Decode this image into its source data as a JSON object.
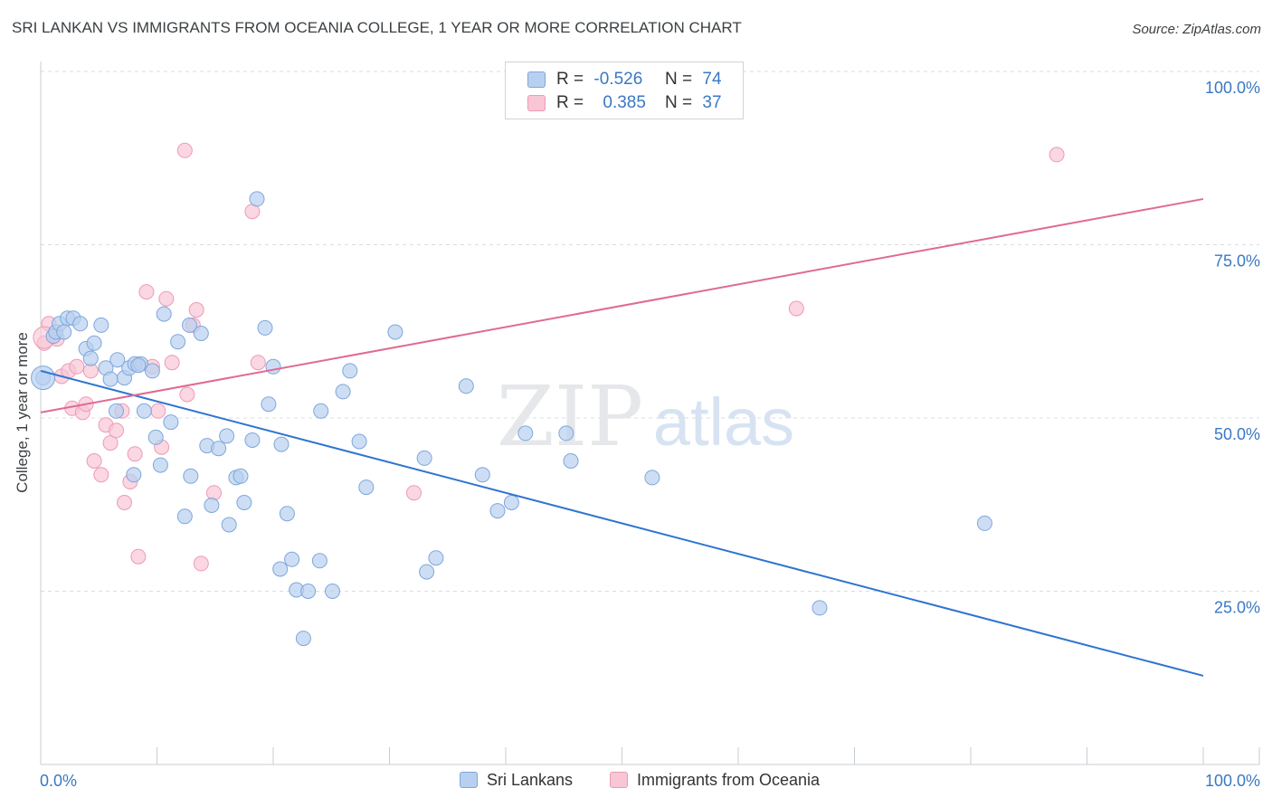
{
  "title": "SRI LANKAN VS IMMIGRANTS FROM OCEANIA COLLEGE, 1 YEAR OR MORE CORRELATION CHART",
  "source": "Source: ZipAtlas.com",
  "watermark": {
    "zip": "ZIP",
    "atlas": "atlas"
  },
  "colors": {
    "blue_fill": "#b8d0ef",
    "blue_stroke": "#7ea6dc",
    "blue_line": "#2f74d0",
    "pink_fill": "#f8c6d5",
    "pink_stroke": "#ee9ab4",
    "pink_line": "#e06a93",
    "grid": "#d9dde2",
    "axis_text_blue": "#3a78c4"
  },
  "legend": {
    "rows": [
      {
        "r_label": "R =",
        "r_value": "-0.526",
        "n_label": "N =",
        "n_value": "74"
      },
      {
        "r_label": "R =",
        "r_value": "0.385",
        "n_label": "N =",
        "n_value": "37"
      }
    ]
  },
  "bottom_legend": {
    "series1": "Sri Lankans",
    "series2": "Immigrants from Oceania"
  },
  "chart_data": {
    "type": "scatter",
    "xlabel": "",
    "ylabel": "College, 1 year or more",
    "xlim": [
      0,
      100
    ],
    "ylim": [
      0,
      100
    ],
    "x_tick_labels": [
      "0.0%",
      "100.0%"
    ],
    "y_tick_labels": [
      "25.0%",
      "50.0%",
      "75.0%",
      "100.0%"
    ],
    "y_ticks": [
      25,
      50,
      75,
      100
    ],
    "series": [
      {
        "name": "Sri Lankans",
        "color": "blue",
        "trend": {
          "x": [
            0,
            100
          ],
          "y": [
            56.8,
            12.8
          ]
        },
        "points": [
          [
            0.2,
            55.8
          ],
          [
            1.1,
            61.8
          ],
          [
            1.3,
            62.4
          ],
          [
            1.6,
            63.6
          ],
          [
            2.0,
            62.4
          ],
          [
            2.3,
            64.4
          ],
          [
            2.8,
            64.4
          ],
          [
            3.4,
            63.6
          ],
          [
            3.9,
            60.0
          ],
          [
            4.3,
            58.6
          ],
          [
            4.6,
            60.8
          ],
          [
            5.2,
            63.4
          ],
          [
            5.6,
            57.2
          ],
          [
            6.0,
            55.6
          ],
          [
            6.5,
            51.0
          ],
          [
            6.6,
            58.4
          ],
          [
            7.2,
            55.8
          ],
          [
            7.6,
            57.2
          ],
          [
            8.1,
            57.8
          ],
          [
            8.6,
            57.8
          ],
          [
            8.9,
            51.0
          ],
          [
            9.6,
            56.8
          ],
          [
            9.9,
            47.2
          ],
          [
            10.3,
            43.2
          ],
          [
            8.0,
            41.8
          ],
          [
            10.6,
            65.0
          ],
          [
            11.2,
            49.4
          ],
          [
            11.8,
            61.0
          ],
          [
            12.8,
            63.4
          ],
          [
            13.8,
            62.2
          ],
          [
            12.4,
            35.8
          ],
          [
            12.9,
            41.6
          ],
          [
            14.3,
            46.0
          ],
          [
            14.7,
            37.4
          ],
          [
            15.3,
            45.6
          ],
          [
            16.0,
            47.4
          ],
          [
            16.2,
            34.6
          ],
          [
            16.8,
            41.4
          ],
          [
            17.2,
            41.6
          ],
          [
            17.5,
            37.8
          ],
          [
            18.2,
            46.8
          ],
          [
            18.6,
            81.6
          ],
          [
            19.3,
            63.0
          ],
          [
            19.6,
            52.0
          ],
          [
            20.0,
            57.4
          ],
          [
            20.7,
            46.2
          ],
          [
            21.2,
            36.2
          ],
          [
            21.6,
            29.6
          ],
          [
            20.6,
            28.2
          ],
          [
            22.0,
            25.2
          ],
          [
            23.0,
            25.0
          ],
          [
            24.0,
            29.4
          ],
          [
            24.1,
            51.0
          ],
          [
            25.1,
            25.0
          ],
          [
            26.0,
            53.8
          ],
          [
            26.6,
            56.8
          ],
          [
            27.4,
            46.6
          ],
          [
            28.0,
            40.0
          ],
          [
            30.5,
            62.4
          ],
          [
            33.0,
            44.2
          ],
          [
            33.2,
            27.8
          ],
          [
            34.0,
            29.8
          ],
          [
            36.6,
            54.6
          ],
          [
            38.0,
            41.8
          ],
          [
            39.3,
            36.6
          ],
          [
            40.5,
            37.8
          ],
          [
            41.7,
            47.8
          ],
          [
            45.2,
            47.8
          ],
          [
            45.6,
            43.8
          ],
          [
            52.6,
            41.4
          ],
          [
            67.0,
            22.6
          ],
          [
            81.2,
            34.8
          ],
          [
            22.6,
            18.2
          ],
          [
            8.4,
            57.6
          ]
        ]
      },
      {
        "name": "Immigrants from Oceania",
        "color": "pink",
        "trend": {
          "x": [
            0,
            100
          ],
          "y": [
            50.8,
            81.6
          ]
        },
        "points": [
          [
            0.3,
            60.8
          ],
          [
            0.7,
            63.6
          ],
          [
            1.4,
            61.4
          ],
          [
            1.8,
            56.0
          ],
          [
            2.4,
            56.8
          ],
          [
            2.7,
            51.4
          ],
          [
            3.1,
            57.4
          ],
          [
            3.6,
            50.8
          ],
          [
            3.9,
            52.0
          ],
          [
            4.3,
            56.8
          ],
          [
            4.6,
            43.8
          ],
          [
            5.2,
            41.8
          ],
          [
            5.6,
            49.0
          ],
          [
            6.0,
            46.4
          ],
          [
            6.5,
            48.2
          ],
          [
            7.0,
            51.0
          ],
          [
            7.2,
            37.8
          ],
          [
            7.7,
            40.8
          ],
          [
            8.1,
            44.8
          ],
          [
            8.4,
            30.0
          ],
          [
            9.1,
            68.2
          ],
          [
            9.6,
            57.4
          ],
          [
            10.1,
            51.0
          ],
          [
            10.4,
            45.8
          ],
          [
            10.8,
            67.2
          ],
          [
            11.3,
            58.0
          ],
          [
            12.4,
            88.6
          ],
          [
            12.6,
            53.4
          ],
          [
            13.1,
            63.4
          ],
          [
            13.4,
            65.6
          ],
          [
            13.8,
            29.0
          ],
          [
            14.9,
            39.2
          ],
          [
            18.2,
            79.8
          ],
          [
            18.7,
            58.0
          ],
          [
            32.1,
            39.2
          ],
          [
            65.0,
            65.8
          ],
          [
            87.4,
            88.0
          ]
        ]
      }
    ]
  }
}
